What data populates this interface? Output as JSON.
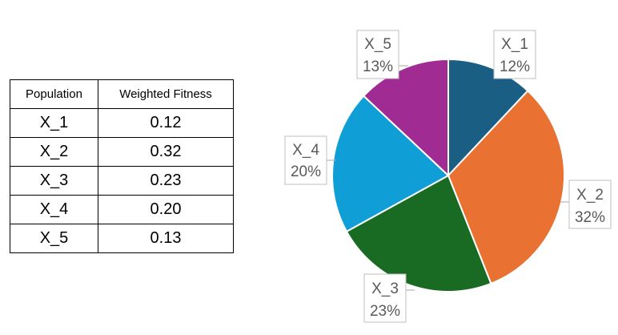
{
  "table": {
    "headers": [
      "Population",
      "Weighted Fitness"
    ],
    "rows": [
      [
        "X_1",
        "0.12"
      ],
      [
        "X_2",
        "0.32"
      ],
      [
        "X_3",
        "0.23"
      ],
      [
        "X_4",
        "0.20"
      ],
      [
        "X_5",
        "0.13"
      ]
    ]
  },
  "chart_data": {
    "type": "pie",
    "title": "",
    "categories": [
      "X_1",
      "X_2",
      "X_3",
      "X_4",
      "X_5"
    ],
    "values": [
      0.12,
      0.32,
      0.23,
      0.2,
      0.13
    ],
    "percent_labels": [
      "12%",
      "32%",
      "23%",
      "20%",
      "13%"
    ],
    "colors": [
      "#1a5f83",
      "#e97132",
      "#196b24",
      "#0f9ed5",
      "#a02b93"
    ],
    "legend": "none",
    "start_angle": "12 o'clock, clockwise"
  }
}
